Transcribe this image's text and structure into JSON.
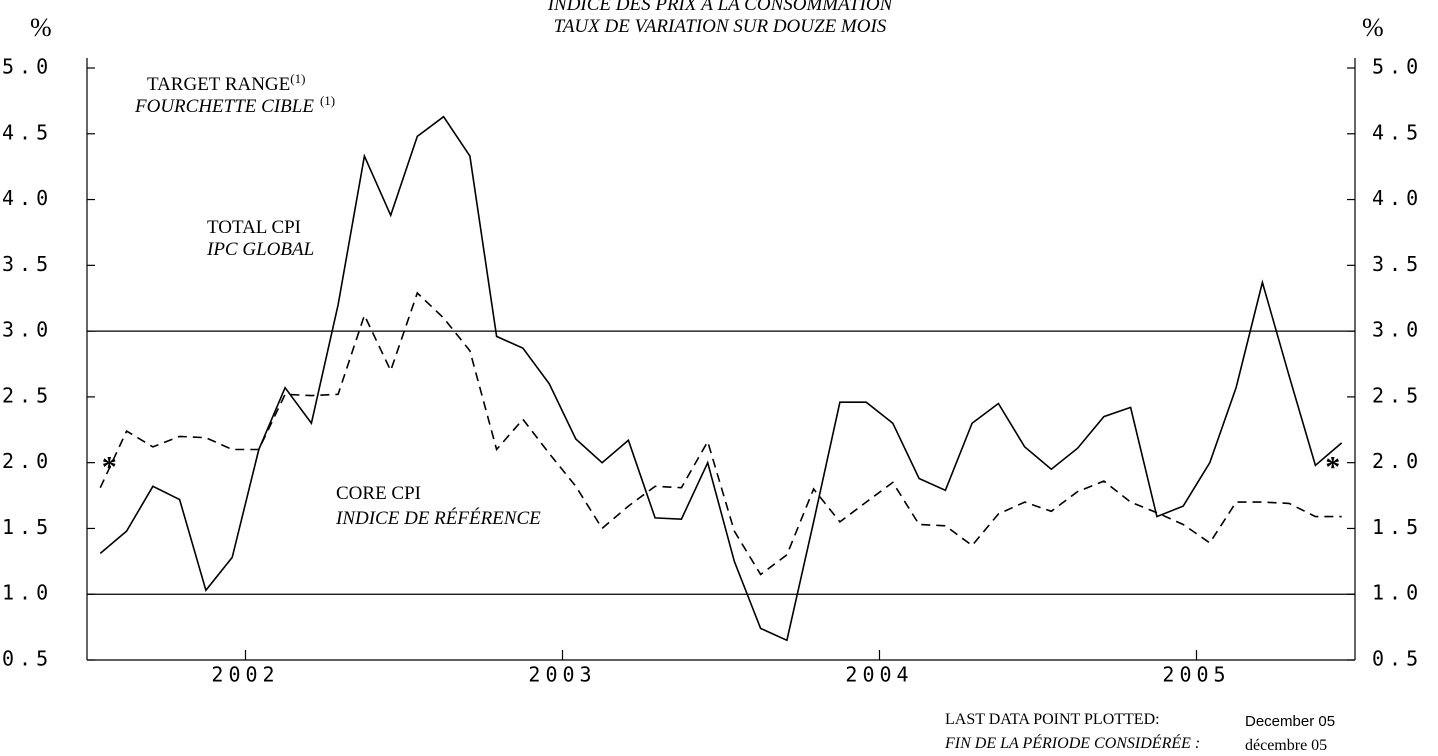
{
  "chart_data": {
    "type": "line",
    "title": "INDICE DES PRIX À LA CONSOMMATION",
    "subtitle": "TAUX DE VARIATION SUR DOUZE MOIS",
    "ylabel": "%",
    "x": [
      2002.042,
      2002.125,
      2002.208,
      2002.292,
      2002.375,
      2002.458,
      2002.542,
      2002.625,
      2002.708,
      2002.792,
      2002.875,
      2002.958,
      2003.042,
      2003.125,
      2003.208,
      2003.292,
      2003.375,
      2003.458,
      2003.542,
      2003.625,
      2003.708,
      2003.792,
      2003.875,
      2003.958,
      2004.042,
      2004.125,
      2004.208,
      2004.292,
      2004.375,
      2004.458,
      2004.542,
      2004.625,
      2004.708,
      2004.792,
      2004.875,
      2004.958,
      2005.042,
      2005.125,
      2005.208,
      2005.292,
      2005.375,
      2005.458,
      2005.542,
      2005.625,
      2005.708,
      2005.792,
      2005.875,
      2005.958
    ],
    "series": [
      {
        "name": "TOTAL CPI",
        "name_fr": "IPC GLOBAL",
        "color": "#000000",
        "style": "solid",
        "values": [
          1.31,
          1.48,
          1.82,
          1.72,
          1.03,
          1.28,
          2.1,
          2.57,
          2.3,
          3.2,
          4.33,
          3.88,
          4.48,
          4.63,
          4.33,
          2.96,
          2.87,
          2.6,
          2.18,
          2.0,
          2.17,
          1.58,
          1.57,
          2.0,
          1.25,
          0.74,
          0.65,
          1.55,
          2.46,
          2.46,
          2.3,
          1.88,
          1.79,
          2.3,
          2.45,
          2.12,
          1.95,
          2.11,
          2.35,
          2.42,
          1.59,
          1.67,
          2.0,
          2.57,
          3.37,
          2.66,
          1.98,
          2.15
        ]
      },
      {
        "name": "CORE CPI",
        "name_fr": "INDICE DE RÉFÉRENCE",
        "color": "#000000",
        "style": "dashed",
        "values": [
          1.81,
          2.24,
          2.12,
          2.2,
          2.19,
          2.1,
          2.1,
          2.52,
          2.51,
          2.52,
          3.12,
          2.7,
          3.29,
          3.1,
          2.85,
          2.1,
          2.33,
          2.07,
          1.82,
          1.5,
          1.67,
          1.82,
          1.81,
          2.16,
          1.48,
          1.15,
          1.3,
          1.8,
          1.55,
          1.7,
          1.85,
          1.53,
          1.52,
          1.37,
          1.61,
          1.7,
          1.63,
          1.78,
          1.86,
          1.7,
          1.62,
          1.53,
          1.39,
          1.7,
          1.7,
          1.69,
          1.59,
          1.59
        ]
      }
    ],
    "target_range": {
      "values": [
        1,
        3
      ],
      "label": "TARGET RANGE",
      "label_fr": "FOURCHETTE CIBLE",
      "note": "(1)"
    },
    "annotations": [
      {
        "text": "*",
        "x": 2002.07,
        "y": 2
      },
      {
        "text": "*",
        "x": 2005.93,
        "y": 2
      }
    ],
    "xlim": [
      2002,
      2006
    ],
    "xticks": [
      {
        "value": 2002.5,
        "label": "2002"
      },
      {
        "value": 2003.5,
        "label": "2003"
      },
      {
        "value": 2004.5,
        "label": "2004"
      },
      {
        "value": 2005.5,
        "label": "2005"
      }
    ],
    "ylim": [
      0.5,
      5
    ],
    "yticks": [
      0.5,
      {
        "value": 1,
        "label": "1.0"
      },
      1.5,
      {
        "value": 2,
        "label": "2.0"
      },
      2.5,
      {
        "value": 3,
        "label": "3.0"
      },
      3.5,
      {
        "value": 4,
        "label": "4.0"
      },
      4.5,
      {
        "value": 5,
        "label": "5.0"
      }
    ],
    "footer": {
      "label": "LAST DATA POINT PLOTTED:",
      "value": "December 05",
      "label_fr": "FIN DE LA PÉRIODE CONSIDÉRÉE :",
      "value_fr": "décembre 05"
    }
  }
}
